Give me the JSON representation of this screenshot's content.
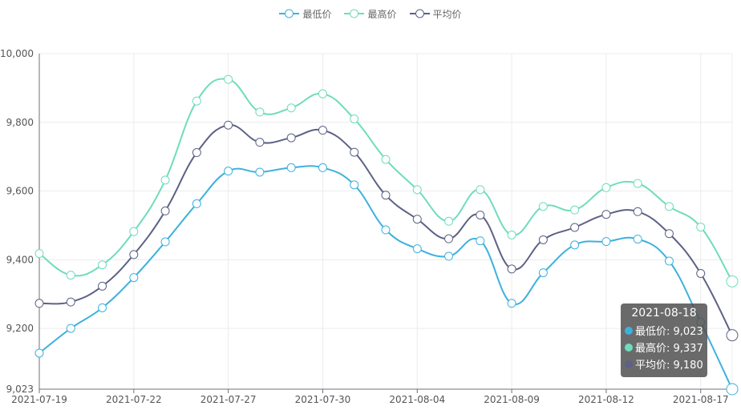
{
  "chart_data": {
    "type": "line",
    "title": "",
    "xlabel": "",
    "ylabel": "",
    "ylim": [
      9023,
      10000
    ],
    "y_ticks": [
      "9,023",
      "9,200",
      "9,400",
      "9,600",
      "9,800",
      "10,000"
    ],
    "y_tick_values": [
      9023,
      9200,
      9400,
      9600,
      9800,
      10000
    ],
    "x_tick_labels": [
      "2021-07-19",
      "2021-07-22",
      "2021-07-27",
      "2021-07-30",
      "2021-08-04",
      "2021-08-09",
      "2021-08-12",
      "2021-08-17"
    ],
    "x": [
      "2021-07-19",
      "2021-07-20",
      "2021-07-21",
      "2021-07-22",
      "2021-07-23",
      "2021-07-26",
      "2021-07-27",
      "2021-07-28",
      "2021-07-29",
      "2021-07-30",
      "2021-08-02",
      "2021-08-03",
      "2021-08-04",
      "2021-08-05",
      "2021-08-06",
      "2021-08-09",
      "2021-08-10",
      "2021-08-11",
      "2021-08-12",
      "2021-08-13",
      "2021-08-16",
      "2021-08-17",
      "2021-08-18"
    ],
    "grid": true,
    "legend_position": "top-center",
    "series": [
      {
        "name": "最低价",
        "color": "#3db1dd",
        "values": [
          9128,
          9200,
          9260,
          9348,
          9452,
          9563,
          9658,
          9655,
          9668,
          9668,
          9618,
          9487,
          9432,
          9410,
          9455,
          9273,
          9362,
          9443,
          9453,
          9460,
          9396,
          9218,
          9023
        ]
      },
      {
        "name": "最高价",
        "color": "#6fdcbd",
        "values": [
          9418,
          9355,
          9385,
          9482,
          9632,
          9862,
          9925,
          9830,
          9842,
          9883,
          9810,
          9692,
          9604,
          9512,
          9604,
          9472,
          9555,
          9545,
          9610,
          9622,
          9555,
          9495,
          9337
        ]
      },
      {
        "name": "平均价",
        "color": "#5d6185",
        "values": [
          9273,
          9277,
          9323,
          9415,
          9542,
          9712,
          9792,
          9742,
          9755,
          9777,
          9713,
          9588,
          9518,
          9461,
          9530,
          9373,
          9458,
          9494,
          9532,
          9540,
          9476,
          9360,
          9180
        ]
      }
    ]
  },
  "tooltip": {
    "date": "2021-08-18",
    "rows": [
      {
        "label": "最低价: 9,023",
        "color": "#3db1dd"
      },
      {
        "label": "最高价: 9,337",
        "color": "#6fdcbd"
      },
      {
        "label": "平均价: 9,180",
        "color": "#5d6185"
      }
    ]
  }
}
